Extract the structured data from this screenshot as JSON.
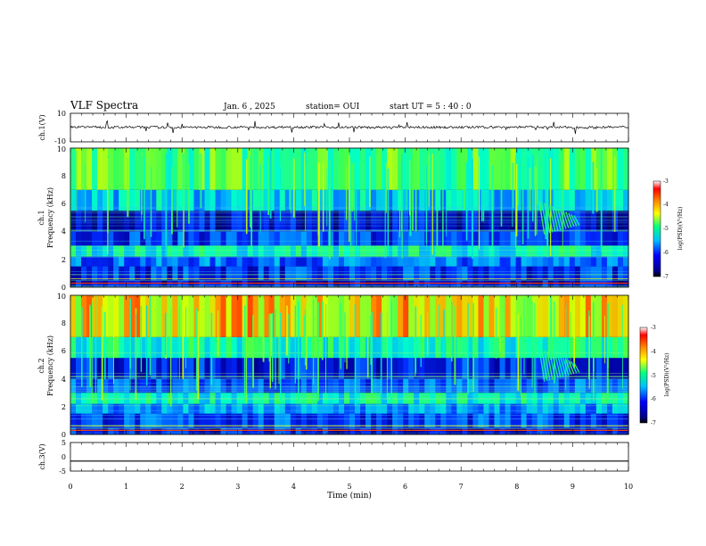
{
  "header": {
    "title": "VLF Spectra",
    "date": "Jan. 6 , 2025",
    "station": "station= OUI",
    "start_ut": "start UT =  5 : 40 : 0"
  },
  "chart_data": [
    {
      "type": "line",
      "panel": "ch1-waveform",
      "ylabel": "ch.1(V)",
      "ylim": [
        -10,
        10
      ],
      "yticks": [
        "10",
        "-10"
      ],
      "xlim": [
        0,
        10
      ],
      "series": [
        {
          "values": [
            0.4,
            0.2,
            0.3,
            0.1,
            0.2,
            0.3,
            0.2,
            0.4,
            0.3,
            0.2,
            0.1,
            0.3,
            0.2,
            0.2,
            0.3,
            0.4,
            0.2,
            0.1,
            0.3,
            0.2
          ]
        }
      ]
    },
    {
      "type": "heatmap",
      "panel": "ch1-spectrogram",
      "ylabel": "ch.1",
      "ylabel2": "Frequency (kHz)",
      "ylim": [
        0,
        10
      ],
      "yticks": [
        "0",
        "2",
        "4",
        "6",
        "8",
        "10"
      ],
      "xlim": [
        0,
        10
      ],
      "colorbar": {
        "label": "log(PSD)(V²/Hz)",
        "range": [
          -7,
          -3
        ],
        "ticks": [
          "-3",
          "-4",
          "-5",
          "-6",
          "-7"
        ],
        "colors": [
          "#00008b",
          "#0000ff",
          "#00bfff",
          "#00ff80",
          "#ffff00",
          "#ff8000",
          "#ff0000",
          "#ffffff"
        ]
      },
      "bands": [
        {
          "f0": 0,
          "f1": 0.5,
          "level": -6.4
        },
        {
          "f0": 0.5,
          "f1": 1.5,
          "level": -6.1
        },
        {
          "f0": 1.5,
          "f1": 2.2,
          "level": -5.8
        },
        {
          "f0": 2.2,
          "f1": 3.0,
          "level": -5.0
        },
        {
          "f0": 3.0,
          "f1": 4.0,
          "level": -6.0
        },
        {
          "f0": 4.0,
          "f1": 5.5,
          "level": -6.4
        },
        {
          "f0": 5.5,
          "f1": 7.0,
          "level": -5.3
        },
        {
          "f0": 7.0,
          "f1": 10.0,
          "level": -4.6
        }
      ]
    },
    {
      "type": "heatmap",
      "panel": "ch2-spectrogram",
      "ylabel": "ch.2",
      "ylabel2": "Frequency (kHz)",
      "ylim": [
        0,
        10
      ],
      "yticks": [
        "0",
        "2",
        "4",
        "6",
        "8",
        "10"
      ],
      "xlim": [
        0,
        10
      ],
      "colorbar": {
        "label": "log(PSD)(V²/Hz)",
        "range": [
          -7,
          -3
        ],
        "ticks": [
          "-3",
          "-4",
          "-5",
          "-6",
          "-7"
        ],
        "colors": [
          "#00008b",
          "#0000ff",
          "#00bfff",
          "#00ff80",
          "#ffff00",
          "#ff8000",
          "#ff0000",
          "#ffffff"
        ]
      },
      "bands": [
        {
          "f0": 0,
          "f1": 0.5,
          "level": -6.3
        },
        {
          "f0": 0.5,
          "f1": 1.5,
          "level": -6.0
        },
        {
          "f0": 1.5,
          "f1": 2.2,
          "level": -5.6
        },
        {
          "f0": 2.2,
          "f1": 3.0,
          "level": -5.0
        },
        {
          "f0": 3.0,
          "f1": 4.0,
          "level": -5.9
        },
        {
          "f0": 4.0,
          "f1": 5.5,
          "level": -6.2
        },
        {
          "f0": 5.5,
          "f1": 7.0,
          "level": -4.9
        },
        {
          "f0": 7.0,
          "f1": 10.0,
          "level": -3.9
        }
      ]
    },
    {
      "type": "line",
      "panel": "ch3-waveform",
      "ylabel": "ch.3(V)",
      "ylim": [
        -5,
        5
      ],
      "yticks": [
        "5",
        "0",
        "-5"
      ],
      "xlim": [
        0,
        10
      ],
      "series": [
        {
          "values": [
            -1.5,
            -1.5
          ]
        }
      ]
    }
  ],
  "xaxis": {
    "label": "Time (min)",
    "ticks": [
      "0",
      "1",
      "2",
      "3",
      "4",
      "5",
      "6",
      "7",
      "8",
      "9",
      "10"
    ],
    "range": [
      0,
      10
    ]
  }
}
